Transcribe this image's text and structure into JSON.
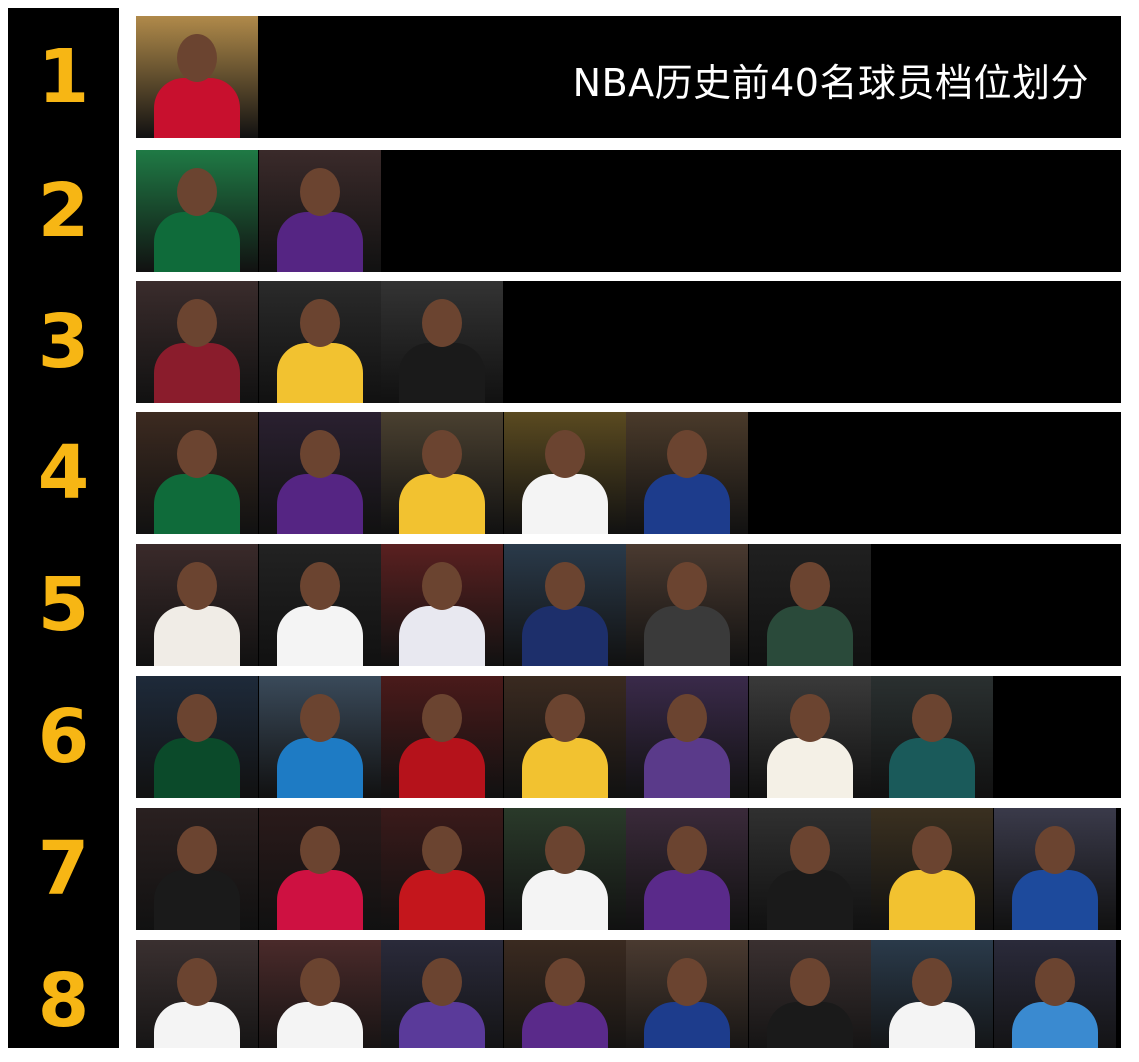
{
  "title": "NBA历史前40名球员档位划分",
  "tiers": [
    {
      "label": "1"
    },
    {
      "label": "2"
    },
    {
      "label": "3"
    },
    {
      "label": "4"
    },
    {
      "label": "5"
    },
    {
      "label": "6"
    },
    {
      "label": "7"
    },
    {
      "label": "8"
    }
  ]
}
